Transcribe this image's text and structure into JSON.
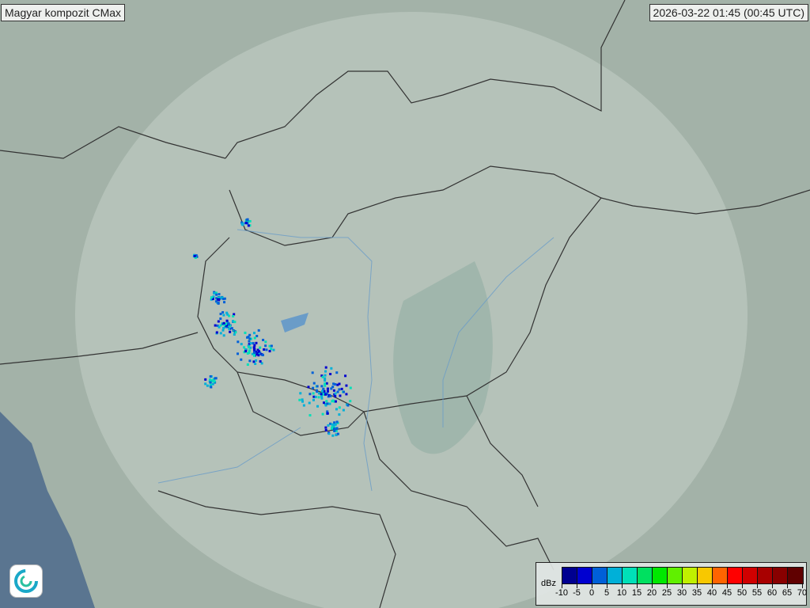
{
  "title": "Magyar kompozit  CMax",
  "timestamp": "2026-03-22 01:45 (00:45 UTC)",
  "legend": {
    "unit": "dBz",
    "ticks": [
      "-10",
      "-5",
      "0",
      "5",
      "10",
      "15",
      "20",
      "25",
      "30",
      "35",
      "40",
      "45",
      "50",
      "55",
      "60",
      "65",
      "70"
    ],
    "colors": [
      "#000090",
      "#0000d0",
      "#0060d8",
      "#00b0d8",
      "#00e0b8",
      "#00e060",
      "#00e800",
      "#60f000",
      "#c0f000",
      "#f8c800",
      "#ff6400",
      "#ff0000",
      "#d00000",
      "#a80000",
      "#880000",
      "#600000"
    ]
  },
  "logo": {
    "icon": "weather-service-swirl-logo"
  }
}
